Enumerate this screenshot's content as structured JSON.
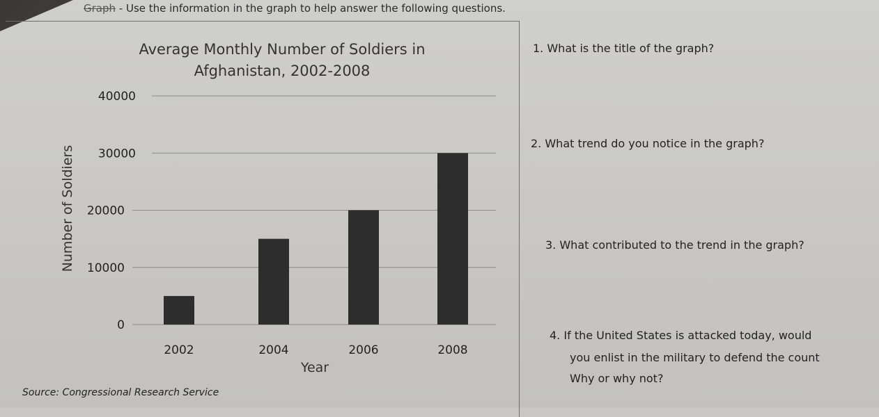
{
  "header": {
    "label": "Graph",
    "text": " - Use the information in the graph to help answer the following questions."
  },
  "chart_data": {
    "type": "bar",
    "title": [
      "Average Monthly Number of Soldiers in",
      "Afghanistan, 2002-2008"
    ],
    "categories": [
      "2002",
      "2004",
      "2006",
      "2008"
    ],
    "values": [
      5000,
      15000,
      20000,
      30000
    ],
    "xlabel": "Year",
    "ylabel": "Number of Soldiers",
    "ylim": [
      0,
      40000
    ],
    "yticks": [
      "0",
      "10000",
      "20000",
      "30000",
      "40000"
    ],
    "grid": true,
    "bar_color": "#2d2d2d"
  },
  "source": "Source: Congressional Research Service",
  "questions": [
    "1.  What is the title of the graph?",
    "2.  What trend do you notice in the graph?",
    "3.  What contributed to the trend in the graph?",
    "4.  If the United States is attacked today, would",
    "you enlist in the military to defend the count",
    "Why or why not?"
  ]
}
